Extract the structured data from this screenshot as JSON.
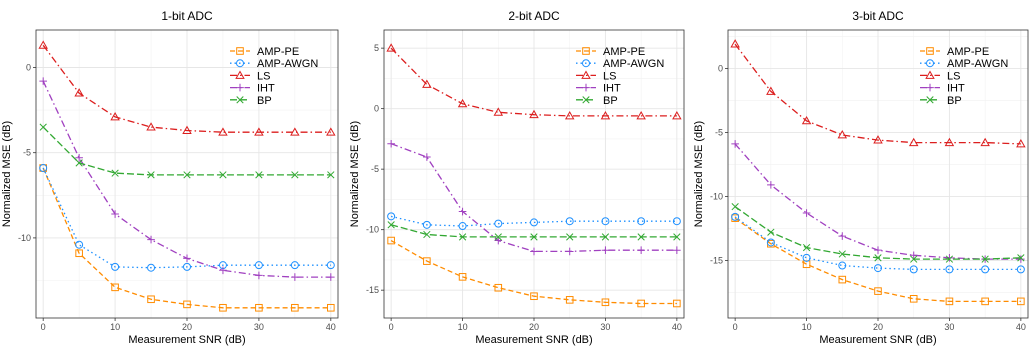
{
  "figure": {
    "xlabel": "Measurement SNR (dB)",
    "ylabel": "Normalized MSE (dB)"
  },
  "series_styles": {
    "AMP-PE": {
      "color": "#FF8C00",
      "marker": "square",
      "dash": "5,3"
    },
    "AMP-AWGN": {
      "color": "#1E90FF",
      "marker": "circle",
      "dash": "1.5,3"
    },
    "LS": {
      "color": "#DC1E1E",
      "marker": "triangle",
      "dash": "7,3,1.5,3"
    },
    "IHT": {
      "color": "#A040C0",
      "marker": "plus",
      "dash": "7,3,1.5,3"
    },
    "BP": {
      "color": "#32A832",
      "marker": "x",
      "dash": "7,3"
    }
  },
  "chart_data": [
    {
      "type": "line",
      "title": "1-bit ADC",
      "xlabel": "Measurement SNR (dB)",
      "ylabel": "Normalized MSE (dB)",
      "x": [
        0,
        5,
        10,
        15,
        20,
        25,
        30,
        35,
        40
      ],
      "xticks": [
        0,
        10,
        20,
        30,
        40
      ],
      "yticks": [
        0,
        -5,
        -10
      ],
      "xlim": [
        -1,
        41
      ],
      "ylim": [
        -14.7,
        2.2
      ],
      "legend": "top-right",
      "grid": true,
      "series": [
        {
          "name": "AMP-PE",
          "values": [
            -5.9,
            -10.9,
            -12.9,
            -13.6,
            -13.9,
            -14.1,
            -14.1,
            -14.1,
            -14.1
          ]
        },
        {
          "name": "AMP-AWGN",
          "values": [
            -5.9,
            -10.4,
            -11.7,
            -11.75,
            -11.7,
            -11.6,
            -11.6,
            -11.6,
            -11.6
          ]
        },
        {
          "name": "LS",
          "values": [
            1.3,
            -1.5,
            -2.9,
            -3.5,
            -3.7,
            -3.8,
            -3.8,
            -3.8,
            -3.8
          ]
        },
        {
          "name": "IHT",
          "values": [
            -0.8,
            -5.3,
            -8.6,
            -10.1,
            -11.2,
            -11.9,
            -12.2,
            -12.3,
            -12.3
          ]
        },
        {
          "name": "BP",
          "values": [
            -3.5,
            -5.6,
            -6.2,
            -6.3,
            -6.3,
            -6.3,
            -6.3,
            -6.3,
            -6.3
          ]
        }
      ]
    },
    {
      "type": "line",
      "title": "2-bit ADC",
      "xlabel": "Measurement SNR (dB)",
      "ylabel": "Normalized MSE (dB)",
      "x": [
        0,
        5,
        10,
        15,
        20,
        25,
        30,
        35,
        40
      ],
      "xticks": [
        0,
        10,
        20,
        30,
        40
      ],
      "yticks": [
        5,
        0,
        -5,
        -10,
        -15
      ],
      "xlim": [
        -1,
        41
      ],
      "ylim": [
        -17.3,
        6.5
      ],
      "legend": "top-right",
      "grid": true,
      "series": [
        {
          "name": "AMP-PE",
          "values": [
            -10.9,
            -12.6,
            -13.9,
            -14.8,
            -15.5,
            -15.8,
            -16.0,
            -16.1,
            -16.1
          ]
        },
        {
          "name": "AMP-AWGN",
          "values": [
            -8.9,
            -9.6,
            -9.7,
            -9.5,
            -9.4,
            -9.3,
            -9.3,
            -9.3,
            -9.3
          ]
        },
        {
          "name": "LS",
          "values": [
            5.0,
            2.0,
            0.4,
            -0.3,
            -0.5,
            -0.6,
            -0.6,
            -0.6,
            -0.6
          ]
        },
        {
          "name": "IHT",
          "values": [
            -2.9,
            -4.0,
            -8.5,
            -10.9,
            -11.8,
            -11.8,
            -11.7,
            -11.7,
            -11.7
          ]
        },
        {
          "name": "BP",
          "values": [
            -9.6,
            -10.4,
            -10.6,
            -10.6,
            -10.6,
            -10.6,
            -10.6,
            -10.6,
            -10.6
          ]
        }
      ]
    },
    {
      "type": "line",
      "title": "3-bit ADC",
      "xlabel": "Measurement SNR (dB)",
      "ylabel": "Normalized MSE (dB)",
      "x": [
        0,
        5,
        10,
        15,
        20,
        25,
        30,
        35,
        40
      ],
      "xticks": [
        0,
        10,
        20,
        30,
        40
      ],
      "yticks": [
        0,
        -5,
        -10,
        -15
      ],
      "xlim": [
        -1,
        41
      ],
      "ylim": [
        -19.5,
        3.0
      ],
      "legend": "top-right",
      "grid": true,
      "series": [
        {
          "name": "AMP-PE",
          "values": [
            -11.7,
            -13.7,
            -15.3,
            -16.5,
            -17.4,
            -18.0,
            -18.2,
            -18.2,
            -18.2
          ]
        },
        {
          "name": "AMP-AWGN",
          "values": [
            -11.6,
            -13.6,
            -14.8,
            -15.4,
            -15.6,
            -15.7,
            -15.7,
            -15.7,
            -15.7
          ]
        },
        {
          "name": "LS",
          "values": [
            1.9,
            -1.8,
            -4.1,
            -5.2,
            -5.6,
            -5.8,
            -5.8,
            -5.8,
            -5.9
          ]
        },
        {
          "name": "IHT",
          "values": [
            -5.9,
            -9.1,
            -11.3,
            -13.1,
            -14.2,
            -14.6,
            -14.8,
            -14.9,
            -14.9
          ]
        },
        {
          "name": "BP",
          "values": [
            -10.8,
            -12.8,
            -14.0,
            -14.5,
            -14.8,
            -14.9,
            -14.9,
            -14.9,
            -14.8
          ]
        }
      ]
    }
  ]
}
